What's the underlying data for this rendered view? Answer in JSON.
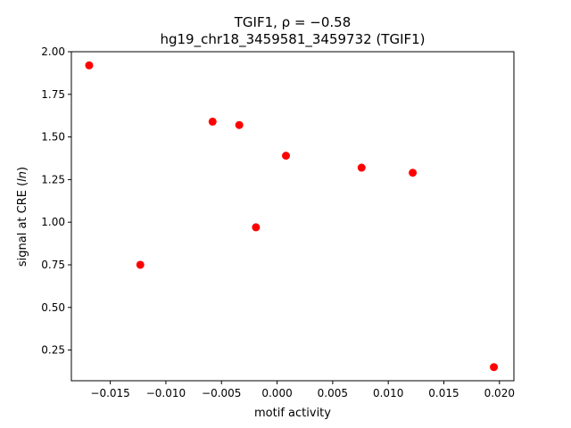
{
  "chart_data": {
    "type": "scatter",
    "title_line1": "TGIF1, ρ = −0.58",
    "title_line2": "hg19_chr18_3459581_3459732 (TGIF1)",
    "xlabel": "motif activity",
    "ylabel": "signal at CRE (ln)",
    "xlim": [
      -0.0185,
      0.0213
    ],
    "ylim": [
      0.07,
      2.0
    ],
    "x_ticks": [
      -0.015,
      -0.01,
      -0.005,
      0.0,
      0.005,
      0.01,
      0.015,
      0.02
    ],
    "x_tick_labels": [
      "−0.015",
      "−0.010",
      "−0.005",
      "0.000",
      "0.005",
      "0.010",
      "0.015",
      "0.020"
    ],
    "y_ticks": [
      0.25,
      0.5,
      0.75,
      1.0,
      1.25,
      1.5,
      1.75,
      2.0
    ],
    "y_tick_labels": [
      "0.25",
      "0.50",
      "0.75",
      "1.00",
      "1.25",
      "1.50",
      "1.75",
      "2.00"
    ],
    "grid": false,
    "marker_color": "#ff0000",
    "points": [
      {
        "x": -0.0169,
        "y": 1.92
      },
      {
        "x": -0.0123,
        "y": 0.75
      },
      {
        "x": -0.0058,
        "y": 1.59
      },
      {
        "x": -0.0034,
        "y": 1.57
      },
      {
        "x": -0.0019,
        "y": 0.97
      },
      {
        "x": 0.0008,
        "y": 1.39
      },
      {
        "x": 0.0076,
        "y": 1.32
      },
      {
        "x": 0.0122,
        "y": 1.29
      },
      {
        "x": 0.0195,
        "y": 0.15
      }
    ]
  }
}
